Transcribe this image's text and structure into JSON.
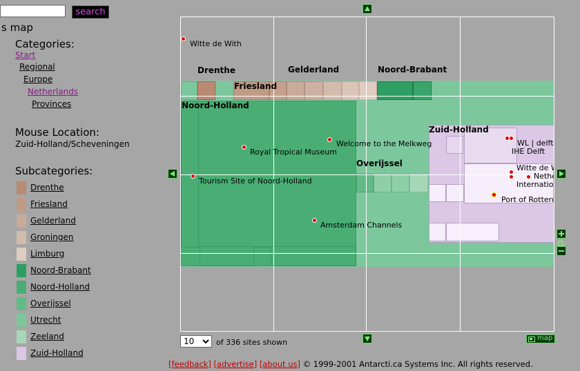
{
  "search": {
    "value": "",
    "button_label": "search"
  },
  "sidebar": {
    "title": "s map",
    "categories_heading": "Categories:",
    "breadcrumbs": [
      {
        "label": "Start"
      },
      {
        "label": "Regional"
      },
      {
        "label": "Europe"
      },
      {
        "label": "Netherlands"
      },
      {
        "label": "Provinces"
      }
    ],
    "mouse_location_heading": "Mouse Location:",
    "mouse_location_value": "Zuid-Holland/Scheveningen",
    "subcategories_heading": "Subcategories:",
    "subcategories": [
      {
        "label": "Drenthe",
        "color": "#b98a72"
      },
      {
        "label": "Friesland",
        "color": "#bf9b86"
      },
      {
        "label": "Gelderland",
        "color": "#c9ab9b"
      },
      {
        "label": "Groningen",
        "color": "#d3bcad"
      },
      {
        "label": "Limburg",
        "color": "#e0cdc1"
      },
      {
        "label": "Noord-Brabant",
        "color": "#2e9e62"
      },
      {
        "label": "Noord-Holland",
        "color": "#4aae74"
      },
      {
        "label": "Overijssel",
        "color": "#62bb86"
      },
      {
        "label": "Utrecht",
        "color": "#7dc79c"
      },
      {
        "label": "Zeeland",
        "color": "#a6d8b8"
      },
      {
        "label": "Zuid-Holland",
        "color": "#dcc8e6"
      }
    ]
  },
  "map": {
    "regions": {
      "drenthe": "Drenthe",
      "gelderland": "Gelderland",
      "noord_brabant": "Noord-Brabant",
      "friesland": "Friesland",
      "noord_holland": "Noord-Holland",
      "zuid_holland": "Zuid-Holland",
      "overijssel": "Overijssel"
    },
    "sites": {
      "witte_de_with_top": "Witte de With",
      "royal_tropical": "Royal Tropical Museum",
      "melkweg": "Welcome to the Melkweg",
      "tourism_nh": "Tourism Site of Noord-Holland",
      "amsterdam_channels": "Amsterdam Channels",
      "wl_delft": "WL | delft hydra",
      "ihe_delft": "IHE Delft",
      "witte_de_with_zh": "Witte de With",
      "netherlands_label": "Netherlands",
      "internationale": "Internationale Fi",
      "port_rotterdam": "Port of Rotterdam"
    },
    "per_page": "10",
    "sites_shown": "of 336 sites shown",
    "map_button": "map"
  },
  "footer": {
    "feedback": "feedback",
    "advertise": "advertise",
    "about": "about us",
    "copyright": "© 1999-2001 Antarcti.ca Systems Inc. All rights reserved."
  }
}
